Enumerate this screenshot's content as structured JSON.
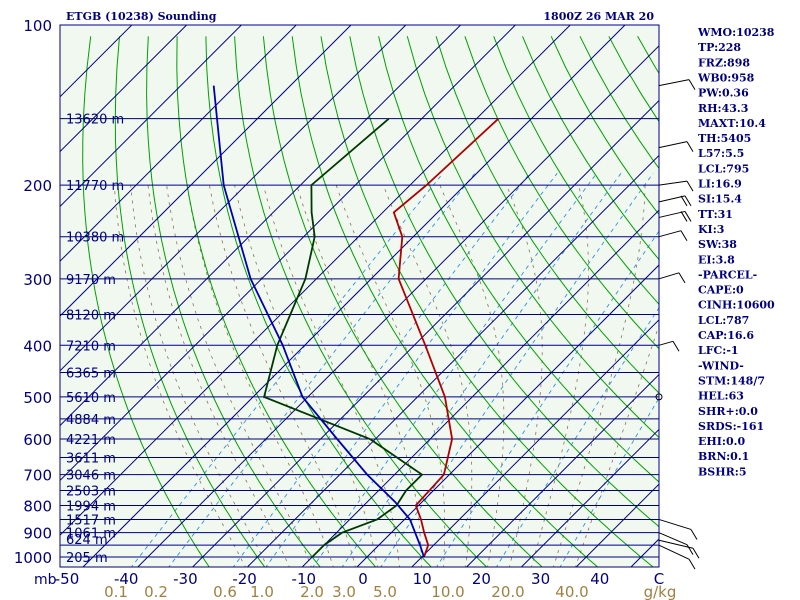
{
  "header": {
    "title": "ETGB (10238) Sounding",
    "time": "1800Z 26 MAR 20"
  },
  "indices": [
    "WMO:10238",
    "TP:228",
    "FRZ:898",
    "WB0:958",
    "PW:0.36",
    "RH:43.3",
    "MAXT:10.4",
    "TH:5405",
    "L57:5.5",
    "LCL:795",
    "LI:16.9",
    "SI:15.4",
    "TT:31",
    "KI:3",
    "SW:38",
    "EI:3.8",
    "-PARCEL-",
    "CAPE:0",
    "CINH:10600",
    "LCL:787",
    "CAP:16.6",
    "LFC:-1",
    "-WIND-",
    "STM:148/7",
    "HEL:63",
    "SHR+:0.0",
    "SRDS:-161",
    "EHI:0.0",
    "BRN:0.1",
    "BSHR:5"
  ],
  "colors": {
    "background": "#ffffff",
    "plot_background": "#f0f8f0",
    "isobar": "#000080",
    "isotherm": "#000080",
    "dry_adiabat": "#00a000",
    "moist_adiabat": "#8b7355",
    "mixing_ratio": "#3090e0",
    "temperature": "#b00000",
    "dewpoint": "#003800",
    "parcel": "#0000b0",
    "text": "#000080",
    "mixing_label": "#a08040"
  },
  "chart_data": {
    "type": "line",
    "title": "ETGB (10238) Sounding",
    "subtitle": "1800Z 26 MAR 20",
    "y_axis": {
      "scale": "log",
      "unit_label": "mb",
      "range": [
        1000,
        100
      ],
      "ticks": [
        100,
        200,
        300,
        400,
        500,
        600,
        700,
        800,
        900,
        1000
      ]
    },
    "x_axis": {
      "unit": "°C",
      "range": [
        -50,
        50
      ],
      "ticks": [
        "-50",
        "-40",
        "-30",
        "-20",
        "-10",
        "0",
        "10",
        "20",
        "30",
        "40",
        "C"
      ]
    },
    "heights": [
      {
        "p": 150,
        "label": "13620 m"
      },
      {
        "p": 200,
        "label": "11770 m"
      },
      {
        "p": 250,
        "label": "10380 m"
      },
      {
        "p": 300,
        "label": "9170 m"
      },
      {
        "p": 350,
        "label": "8120 m"
      },
      {
        "p": 400,
        "label": "7210 m"
      },
      {
        "p": 450,
        "label": "6365 m"
      },
      {
        "p": 500,
        "label": "5610 m"
      },
      {
        "p": 550,
        "label": "4884 m"
      },
      {
        "p": 600,
        "label": "4221 m"
      },
      {
        "p": 650,
        "label": "3611 m"
      },
      {
        "p": 700,
        "label": "3046 m"
      },
      {
        "p": 750,
        "label": "2503 m"
      },
      {
        "p": 800,
        "label": "1994 m"
      },
      {
        "p": 850,
        "label": "1517 m"
      },
      {
        "p": 900,
        "label": "1061 m"
      },
      {
        "p": 925,
        "label": "624 m"
      },
      {
        "p": 1000,
        "label": "205 m"
      }
    ],
    "mixing_ratio_labels": [
      "0.1",
      "0.2",
      "0.6",
      "1.0",
      "2.0",
      "3.0",
      "5.0",
      "10.0",
      "20.0",
      "40.0",
      "g/kg"
    ],
    "series": [
      {
        "id": "temperature",
        "points": [
          {
            "p": 150,
            "t": -56
          },
          {
            "p": 200,
            "t": -57
          },
          {
            "p": 225,
            "t": -58
          },
          {
            "p": 250,
            "t": -52
          },
          {
            "p": 300,
            "t": -45
          },
          {
            "p": 400,
            "t": -28
          },
          {
            "p": 500,
            "t": -15
          },
          {
            "p": 600,
            "t": -6
          },
          {
            "p": 700,
            "t": -1
          },
          {
            "p": 800,
            "t": -0.5
          },
          {
            "p": 850,
            "t": 3
          },
          {
            "p": 900,
            "t": 6
          },
          {
            "p": 950,
            "t": 9
          },
          {
            "p": 1000,
            "t": 10.4
          }
        ]
      },
      {
        "id": "dewpoint",
        "points": [
          {
            "p": 150,
            "t": -76
          },
          {
            "p": 200,
            "t": -78
          },
          {
            "p": 225,
            "t": -73
          },
          {
            "p": 250,
            "t": -68
          },
          {
            "p": 300,
            "t": -62
          },
          {
            "p": 400,
            "t": -55
          },
          {
            "p": 500,
            "t": -48
          },
          {
            "p": 600,
            "t": -21
          },
          {
            "p": 700,
            "t": -5
          },
          {
            "p": 750,
            "t": -5
          },
          {
            "p": 800,
            "t": -4
          },
          {
            "p": 850,
            "t": -5
          },
          {
            "p": 900,
            "t": -9
          },
          {
            "p": 950,
            "t": -10
          },
          {
            "p": 1000,
            "t": -10
          }
        ]
      },
      {
        "id": "parcel",
        "points": [
          {
            "p": 130,
            "t": -114
          },
          {
            "p": 200,
            "t": -94
          },
          {
            "p": 300,
            "t": -72
          },
          {
            "p": 400,
            "t": -54
          },
          {
            "p": 500,
            "t": -41
          },
          {
            "p": 600,
            "t": -27
          },
          {
            "p": 700,
            "t": -15
          },
          {
            "p": 787,
            "t": -5
          },
          {
            "p": 850,
            "t": 1
          },
          {
            "p": 950,
            "t": 7.5
          },
          {
            "p": 1000,
            "t": 10.4
          }
        ]
      }
    ]
  }
}
